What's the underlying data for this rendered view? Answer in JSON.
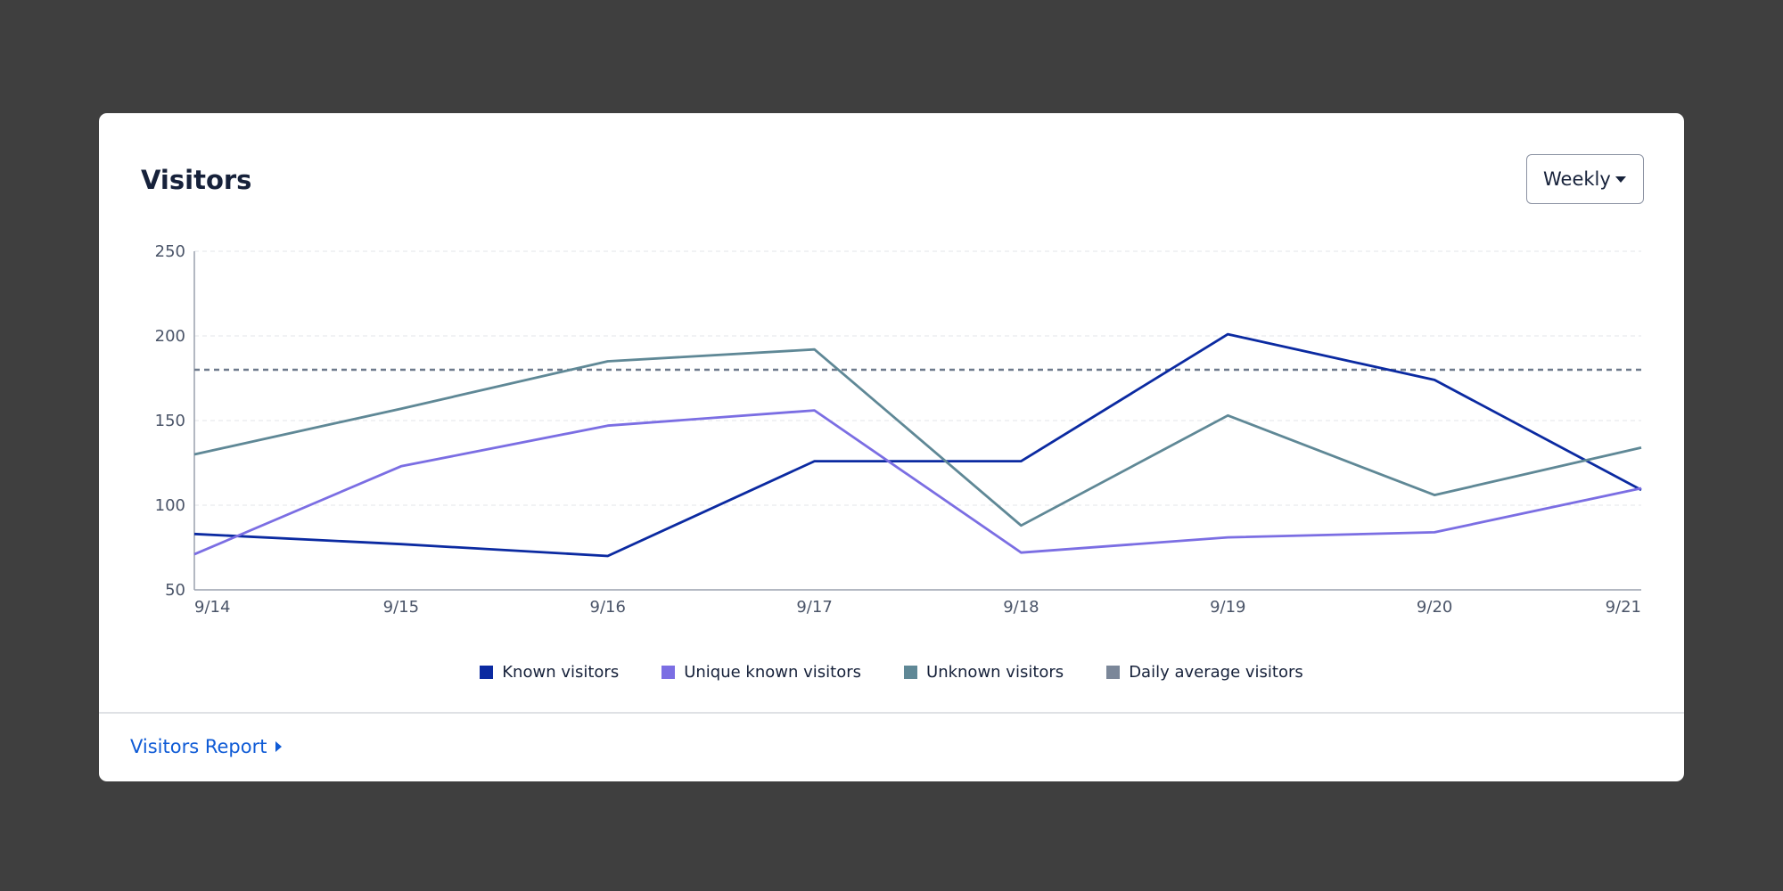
{
  "card": {
    "title": "Visitors",
    "dropdown": {
      "selected": "Weekly"
    },
    "report_link": "Visitors Report"
  },
  "legend": [
    {
      "label": "Known visitors",
      "color": "#0b2aa1"
    },
    {
      "label": "Unique known visitors",
      "color": "#7b6ee3"
    },
    {
      "label": "Unknown visitors",
      "color": "#5f8896"
    },
    {
      "label": "Daily average visitors",
      "color": "#7b8799"
    }
  ],
  "chart_data": {
    "type": "line",
    "title": "Visitors",
    "xlabel": "",
    "ylabel": "",
    "categories": [
      "9/14",
      "9/15",
      "9/16",
      "9/17",
      "9/18",
      "9/19",
      "9/20",
      "9/21"
    ],
    "ylim": [
      50,
      250
    ],
    "yticks": [
      50,
      100,
      150,
      200,
      250
    ],
    "grid": true,
    "series": [
      {
        "name": "Known visitors",
        "color": "#0b2aa1",
        "values": [
          83,
          77,
          70,
          126,
          126,
          201,
          174,
          109
        ]
      },
      {
        "name": "Unique known visitors",
        "color": "#7b6ee3",
        "values": [
          71,
          123,
          147,
          156,
          72,
          81,
          84,
          110
        ]
      },
      {
        "name": "Unknown visitors",
        "color": "#5f8896",
        "values": [
          130,
          157,
          185,
          192,
          88,
          153,
          106,
          134
        ]
      }
    ],
    "reference_line": {
      "name": "Daily average visitors",
      "value": 180,
      "color": "#6e7a8c",
      "style": "dashed"
    }
  }
}
